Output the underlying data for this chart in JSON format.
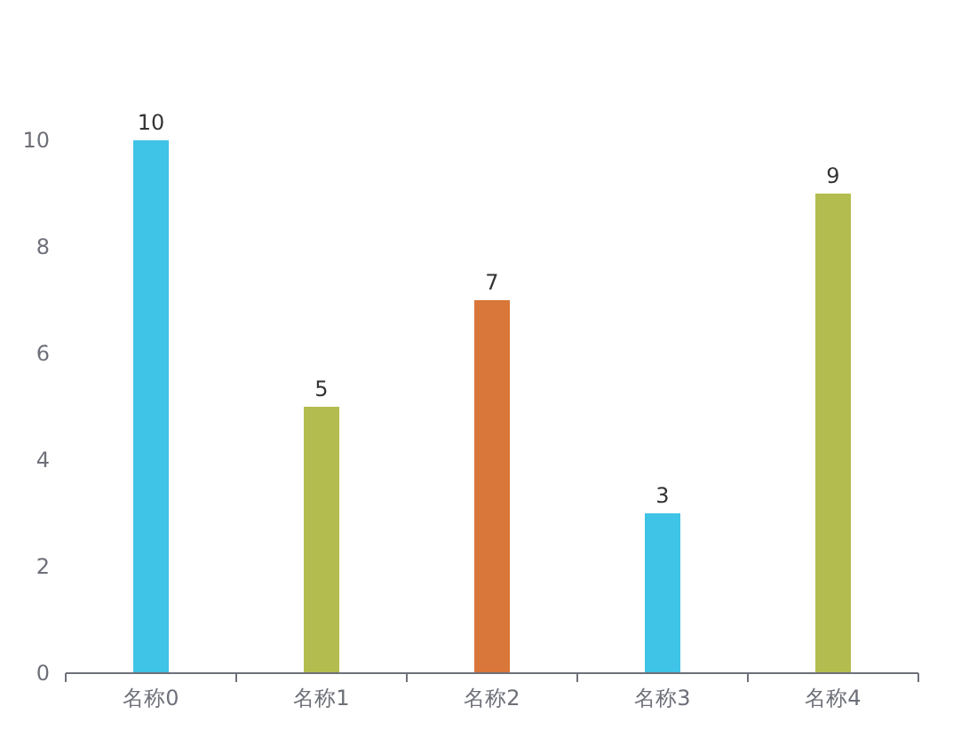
{
  "chart_data": {
    "type": "bar",
    "categories": [
      "名称0",
      "名称1",
      "名称2",
      "名称3",
      "名称4"
    ],
    "values": [
      10,
      5,
      7,
      3,
      9
    ],
    "colors": [
      "#3fc3e6",
      "#b3bd4f",
      "#d9763a",
      "#3fc3e6",
      "#b3bd4f"
    ],
    "ylim": [
      0,
      10
    ],
    "yticks": [
      0,
      2,
      4,
      6,
      8,
      10
    ],
    "data_labels": true
  }
}
